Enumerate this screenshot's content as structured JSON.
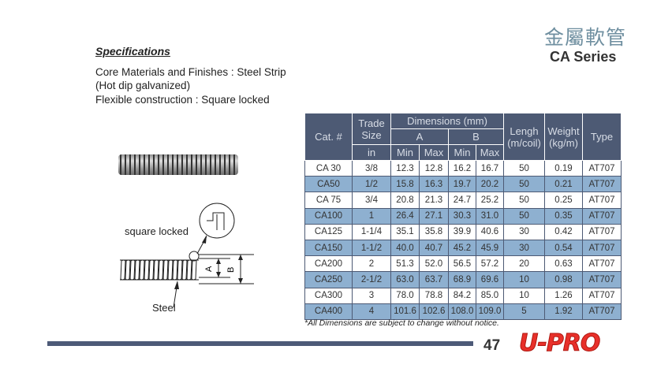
{
  "header": {
    "chinese_title": "金屬軟管",
    "series": "CA Series"
  },
  "specs": {
    "title": "Specifications",
    "lines": [
      "Core Materials and Finishes : Steel Strip",
      "(Hot dip galvanized)",
      "Flexible construction : Square locked"
    ]
  },
  "diagram": {
    "square_locked": "square locked",
    "steel": "Steel",
    "a": "A",
    "b": "B"
  },
  "table": {
    "h_cat": "Cat. #",
    "h_trade": "Trade Size",
    "h_trade_unit": "in",
    "h_dim": "Dimensions (mm)",
    "h_a": "A",
    "h_b": "B",
    "h_min": "Min",
    "h_max": "Max",
    "h_length": "Lengh (m/coil)",
    "h_weight": "Weight (kg/m)",
    "h_type": "Type",
    "rows": [
      [
        "CA 30",
        "3/8",
        "12.3",
        "12.8",
        "16.2",
        "16.7",
        "50",
        "0.19",
        "AT707"
      ],
      [
        "CA50",
        "1/2",
        "15.8",
        "16.3",
        "19.7",
        "20.2",
        "50",
        "0.21",
        "AT707"
      ],
      [
        "CA 75",
        "3/4",
        "20.8",
        "21.3",
        "24.7",
        "25.2",
        "50",
        "0.25",
        "AT707"
      ],
      [
        "CA100",
        "1",
        "26.4",
        "27.1",
        "30.3",
        "31.0",
        "50",
        "0.35",
        "AT707"
      ],
      [
        "CA125",
        "1-1/4",
        "35.1",
        "35.8",
        "39.9",
        "40.6",
        "30",
        "0.42",
        "AT707"
      ],
      [
        "CA150",
        "1-1/2",
        "40.0",
        "40.7",
        "45.2",
        "45.9",
        "30",
        "0.54",
        "AT707"
      ],
      [
        "CA200",
        "2",
        "51.3",
        "52.0",
        "56.5",
        "57.2",
        "20",
        "0.63",
        "AT707"
      ],
      [
        "CA250",
        "2-1/2",
        "63.0",
        "63.7",
        "68.9",
        "69.6",
        "10",
        "0.98",
        "AT707"
      ],
      [
        "CA300",
        "3",
        "78.0",
        "78.8",
        "84.2",
        "85.0",
        "10",
        "1.26",
        "AT707"
      ],
      [
        "CA400",
        "4",
        "101.6",
        "102.6",
        "108.0",
        "109.0",
        "5",
        "1.92",
        "AT707"
      ]
    ],
    "note": "*All Dimensions are subject to change without notice."
  },
  "footer": {
    "page": "47",
    "logo": "U-PRO"
  },
  "colors": {
    "header_bg": "#4d5a74",
    "row_blue": "#8eb0d0",
    "logo": "#e8302a"
  }
}
